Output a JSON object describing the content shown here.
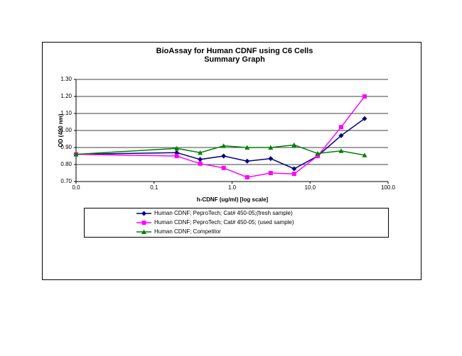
{
  "chart_data": {
    "type": "line",
    "title": "BioAssay for Human CDNF using C6 Cells",
    "subtitle": "Summary Graph",
    "x_label": "h-CDNF (ug/ml) [log scale]",
    "y_label": "OD (490 nm)",
    "x": [
      0.01,
      0.195,
      0.39,
      0.78,
      1.5625,
      3.125,
      6.25,
      12.5,
      25,
      50
    ],
    "xscale": "log",
    "xlim": [
      0.01,
      100
    ],
    "xticks": [
      {
        "value": 0.01,
        "label": "0.0"
      },
      {
        "value": 0.1,
        "label": "0.1"
      },
      {
        "value": 1,
        "label": "1.0"
      },
      {
        "value": 10,
        "label": "10.0"
      },
      {
        "value": 100,
        "label": "100.0"
      }
    ],
    "ylim": [
      0.7,
      1.3
    ],
    "yticks": [
      {
        "value": 0.7,
        "label": "0.70"
      },
      {
        "value": 0.8,
        "label": "0.80"
      },
      {
        "value": 0.9,
        "label": "0.90"
      },
      {
        "value": 1.0,
        "label": "1.00"
      },
      {
        "value": 1.1,
        "label": "1.10"
      },
      {
        "value": 1.2,
        "label": "1.20"
      },
      {
        "value": 1.3,
        "label": "1.30"
      }
    ],
    "grid": true,
    "legend": "bottom",
    "series": [
      {
        "name": "Human CDNF; PeproTech; Cat# 450-05;(fresh sample)",
        "color": "#000080",
        "marker": "diamond",
        "values": [
          0.86,
          0.87,
          0.83,
          0.85,
          0.82,
          0.835,
          0.775,
          0.85,
          0.97,
          1.07
        ]
      },
      {
        "name": "Human CDNF; PeproTech; Cat# 450-05; (used sample)",
        "color": "#ff00ff",
        "marker": "square",
        "values": [
          0.86,
          0.85,
          0.805,
          0.78,
          0.725,
          0.75,
          0.745,
          0.85,
          1.02,
          1.2
        ]
      },
      {
        "name": "Human CDNF; Competitor",
        "color": "#008000",
        "marker": "triangle",
        "values": [
          0.86,
          0.895,
          0.87,
          0.91,
          0.9,
          0.9,
          0.915,
          0.865,
          0.88,
          0.855
        ]
      }
    ]
  }
}
